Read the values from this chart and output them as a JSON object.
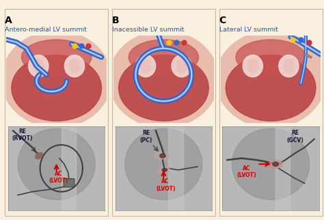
{
  "background_color": "#faf0e0",
  "panel_bg": "#faf0e0",
  "panel_labels": [
    "A",
    "B",
    "C"
  ],
  "panel_titles": [
    "Antero-medial LV summit",
    "Inacessible LV summit",
    "Lateral LV summit"
  ],
  "title_color": "#2255aa",
  "title_fontsize": 6.8,
  "label_fontsize": 10,
  "re_labels": [
    "RE\n(RVOT)",
    "RE\n(PC)",
    "RE\n(GCV)"
  ],
  "ac_labels": [
    "AC\n(LVOT)",
    "AC\n(LVOT)",
    "AC\n(LVOT)"
  ],
  "annotation_color": "#cc0000",
  "label_text_color": "#111133",
  "heart_red": "#b84040",
  "heart_light": "#e8a090",
  "heart_pink": "#f0c0b0",
  "catheter_blue": "#3366cc",
  "catheter_dark": "#224499",
  "fluoro_bg": "#b0b0b0",
  "fluoro_dark": "#505050",
  "fluoro_med": "#808080"
}
